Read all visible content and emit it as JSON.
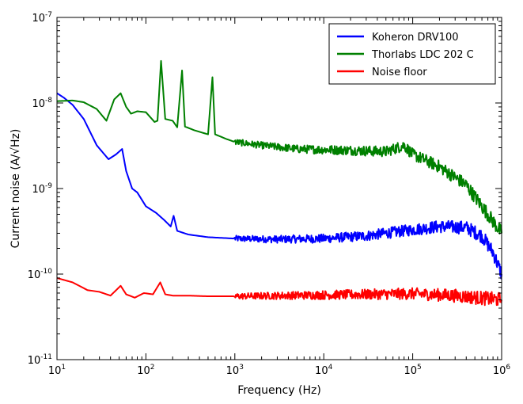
{
  "chart_data": {
    "type": "line",
    "title": "",
    "xlabel": "Frequency (Hz)",
    "ylabel": "Current noise (A/√Hz)",
    "xscale": "log",
    "yscale": "log",
    "xlim": [
      10,
      1000000
    ],
    "ylim": [
      1e-11,
      1e-07
    ],
    "x_ticks": [
      {
        "base": "10",
        "exp": "1"
      },
      {
        "base": "10",
        "exp": "2"
      },
      {
        "base": "10",
        "exp": "3"
      },
      {
        "base": "10",
        "exp": "4"
      },
      {
        "base": "10",
        "exp": "5"
      },
      {
        "base": "10",
        "exp": "6"
      }
    ],
    "y_ticks": [
      {
        "base": "10",
        "exp": "-11"
      },
      {
        "base": "10",
        "exp": "-10"
      },
      {
        "base": "10",
        "exp": "-9"
      },
      {
        "base": "10",
        "exp": "-8"
      },
      {
        "base": "10",
        "exp": "-7"
      }
    ],
    "legend_position": "top-right",
    "series": [
      {
        "name": "Koheron DRV100",
        "color": "#0000ff",
        "points": [
          [
            10,
            1.3e-08
          ],
          [
            12,
            1.15e-08
          ],
          [
            15,
            9.5e-09
          ],
          [
            20,
            6.5e-09
          ],
          [
            28,
            3.2e-09
          ],
          [
            38,
            2.2e-09
          ],
          [
            46,
            2.5e-09
          ],
          [
            54,
            2.9e-09
          ],
          [
            60,
            1.6e-09
          ],
          [
            70,
            1e-09
          ],
          [
            80,
            9e-10
          ],
          [
            100,
            6.2e-10
          ],
          [
            130,
            5.2e-10
          ],
          [
            160,
            4.3e-10
          ],
          [
            190,
            3.6e-10
          ],
          [
            205,
            4.8e-10
          ],
          [
            225,
            3.2e-10
          ],
          [
            300,
            2.9e-10
          ],
          [
            500,
            2.7e-10
          ],
          [
            1000,
            2.6e-10
          ],
          [
            3000,
            2.55e-10
          ],
          [
            10000,
            2.6e-10
          ],
          [
            30000,
            2.8e-10
          ],
          [
            100000,
            3.3e-10
          ],
          [
            200000,
            3.6e-10
          ],
          [
            400000,
            3.5e-10
          ],
          [
            600000,
            2.8e-10
          ],
          [
            800000,
            1.8e-10
          ],
          [
            1000000,
            1e-10
          ]
        ]
      },
      {
        "name": "Thorlabs LDC 202 C",
        "color": "#008000",
        "points": [
          [
            10,
            1.05e-08
          ],
          [
            15,
            1.07e-08
          ],
          [
            20,
            1.02e-08
          ],
          [
            28,
            8.5e-09
          ],
          [
            36,
            6.2e-09
          ],
          [
            44,
            1.1e-08
          ],
          [
            52,
            1.3e-08
          ],
          [
            60,
            9e-09
          ],
          [
            68,
            7.5e-09
          ],
          [
            80,
            8e-09
          ],
          [
            100,
            7.8e-09
          ],
          [
            125,
            6e-09
          ],
          [
            135,
            6.2e-09
          ],
          [
            148,
            3.1e-08
          ],
          [
            165,
            6.5e-09
          ],
          [
            200,
            6.2e-09
          ],
          [
            225,
            5.2e-09
          ],
          [
            255,
            2.4e-08
          ],
          [
            275,
            5.3e-09
          ],
          [
            350,
            4.8e-09
          ],
          [
            430,
            4.5e-09
          ],
          [
            500,
            4.3e-09
          ],
          [
            560,
            2e-08
          ],
          [
            600,
            4.3e-09
          ],
          [
            800,
            3.8e-09
          ],
          [
            1000,
            3.5e-09
          ],
          [
            2000,
            3.2e-09
          ],
          [
            5000,
            2.9e-09
          ],
          [
            20000,
            2.8e-09
          ],
          [
            50000,
            2.7e-09
          ],
          [
            80000,
            3.2e-09
          ],
          [
            100000,
            2.5e-09
          ],
          [
            200000,
            1.8e-09
          ],
          [
            400000,
            1.1e-09
          ],
          [
            700000,
            5e-10
          ],
          [
            1000000,
            3e-10
          ]
        ]
      },
      {
        "name": "Noise floor",
        "color": "#ff0000",
        "points": [
          [
            10,
            9e-11
          ],
          [
            15,
            8e-11
          ],
          [
            22,
            6.5e-11
          ],
          [
            30,
            6.2e-11
          ],
          [
            40,
            5.6e-11
          ],
          [
            52,
            7.3e-11
          ],
          [
            60,
            5.8e-11
          ],
          [
            75,
            5.3e-11
          ],
          [
            95,
            6e-11
          ],
          [
            120,
            5.8e-11
          ],
          [
            145,
            8e-11
          ],
          [
            165,
            5.8e-11
          ],
          [
            200,
            5.6e-11
          ],
          [
            300,
            5.6e-11
          ],
          [
            500,
            5.5e-11
          ],
          [
            1000,
            5.5e-11
          ],
          [
            10000,
            5.7e-11
          ],
          [
            100000,
            5.9e-11
          ],
          [
            300000,
            5.6e-11
          ],
          [
            1000000,
            5e-11
          ]
        ]
      }
    ]
  }
}
